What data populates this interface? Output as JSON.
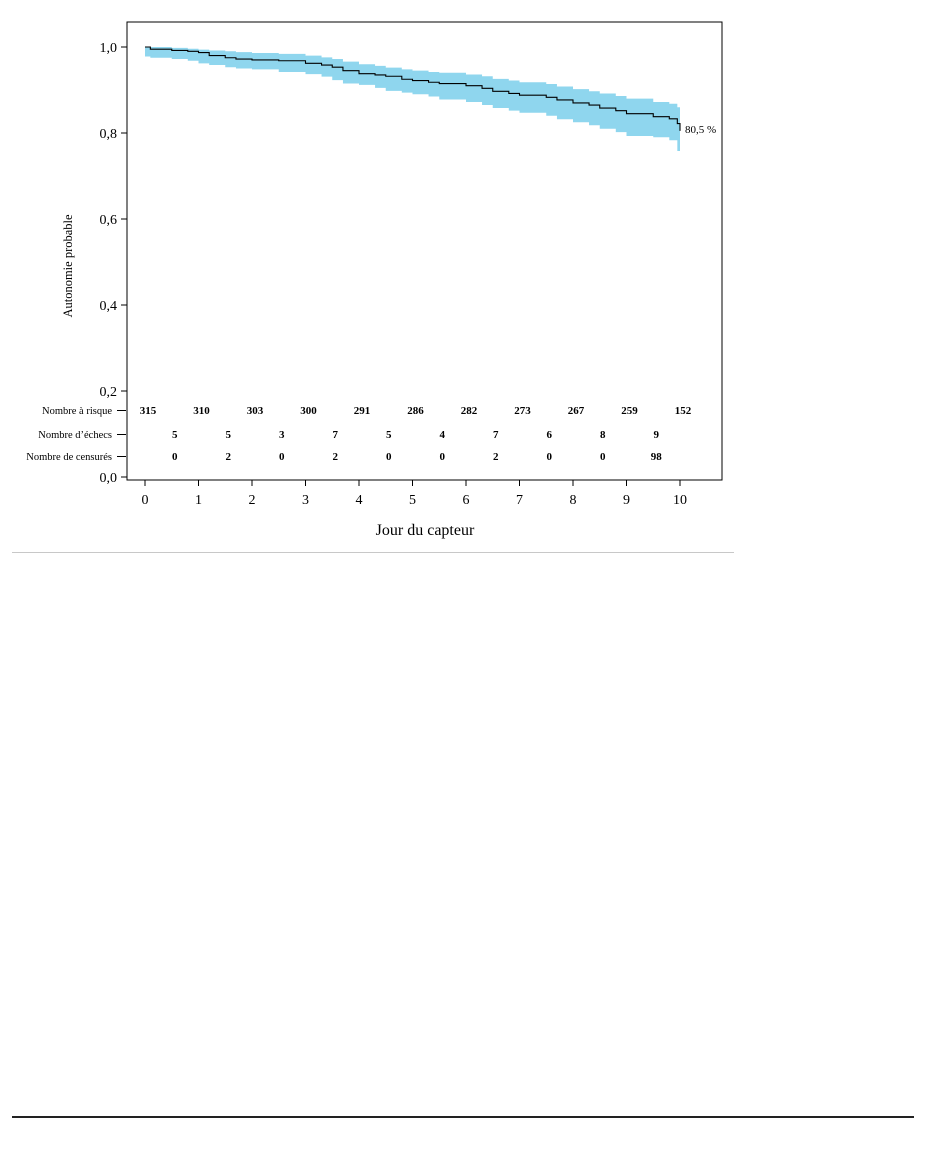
{
  "chart_data": {
    "type": "line",
    "title": "",
    "xlabel": "Jour du capteur",
    "ylabel": "Autonomie probable",
    "xlim": [
      -0.3,
      10.8
    ],
    "ylim": [
      0.0,
      1.05
    ],
    "y_ticks": [
      0.0,
      0.2,
      0.4,
      0.6,
      0.8,
      1.0
    ],
    "y_tick_labels": [
      "0,0",
      "0,2",
      "0,4",
      "0,6",
      "0,8",
      "1,0"
    ],
    "x_ticks": [
      0,
      1,
      2,
      3,
      4,
      5,
      6,
      7,
      8,
      9,
      10
    ],
    "x_tick_labels": [
      "0",
      "1",
      "2",
      "3",
      "4",
      "5",
      "6",
      "7",
      "8",
      "9",
      "10"
    ],
    "grid": false,
    "band_color": "#8fd6ee",
    "line_color": "#000000",
    "end_label": "80,5 %",
    "series": [
      {
        "x": [
          0,
          0.1,
          0.5,
          0.8,
          1.0,
          1.2,
          1.5,
          1.7,
          2.0,
          2.5,
          3.0,
          3.3,
          3.5,
          3.7,
          4.0,
          4.3,
          4.5,
          4.8,
          5.0,
          5.3,
          5.5,
          6.0,
          6.3,
          6.5,
          6.8,
          7.0,
          7.5,
          7.7,
          8.0,
          8.3,
          8.5,
          8.8,
          9.0,
          9.5,
          9.8,
          9.95,
          10.0
        ],
        "y": [
          1.0,
          0.995,
          0.992,
          0.99,
          0.987,
          0.98,
          0.975,
          0.972,
          0.97,
          0.968,
          0.962,
          0.958,
          0.953,
          0.945,
          0.938,
          0.935,
          0.932,
          0.925,
          0.922,
          0.918,
          0.915,
          0.91,
          0.904,
          0.897,
          0.892,
          0.888,
          0.883,
          0.877,
          0.87,
          0.865,
          0.858,
          0.852,
          0.845,
          0.838,
          0.833,
          0.822,
          0.805
        ],
        "lower": [
          0.98,
          0.978,
          0.975,
          0.972,
          0.968,
          0.962,
          0.958,
          0.953,
          0.95,
          0.948,
          0.942,
          0.937,
          0.931,
          0.923,
          0.915,
          0.912,
          0.905,
          0.898,
          0.894,
          0.89,
          0.885,
          0.878,
          0.872,
          0.865,
          0.858,
          0.852,
          0.847,
          0.84,
          0.832,
          0.825,
          0.818,
          0.81,
          0.802,
          0.793,
          0.79,
          0.783,
          0.758
        ],
        "upper": [
          1.0,
          1.0,
          0.998,
          0.996,
          0.994,
          0.992,
          0.99,
          0.988,
          0.986,
          0.984,
          0.98,
          0.976,
          0.972,
          0.966,
          0.96,
          0.956,
          0.952,
          0.948,
          0.945,
          0.942,
          0.94,
          0.936,
          0.932,
          0.926,
          0.922,
          0.918,
          0.914,
          0.908,
          0.902,
          0.897,
          0.892,
          0.886,
          0.88,
          0.872,
          0.868,
          0.86,
          0.848
        ]
      }
    ],
    "risk_table": {
      "rows": [
        {
          "label": "Nombre à risque",
          "values": [
            {
              "x": 0,
              "v": "315"
            },
            {
              "x": 1,
              "v": "310"
            },
            {
              "x": 2,
              "v": "303"
            },
            {
              "x": 3,
              "v": "300"
            },
            {
              "x": 4,
              "v": "291"
            },
            {
              "x": 5,
              "v": "286"
            },
            {
              "x": 6,
              "v": "282"
            },
            {
              "x": 7,
              "v": "273"
            },
            {
              "x": 8,
              "v": "267"
            },
            {
              "x": 9,
              "v": "259"
            },
            {
              "x": 10,
              "v": "152"
            }
          ]
        },
        {
          "label": "Nombre d’échecs",
          "values": [
            {
              "x": 0.5,
              "v": "5"
            },
            {
              "x": 1.5,
              "v": "5"
            },
            {
              "x": 2.5,
              "v": "3"
            },
            {
              "x": 3.5,
              "v": "7"
            },
            {
              "x": 4.5,
              "v": "5"
            },
            {
              "x": 5.5,
              "v": "4"
            },
            {
              "x": 6.5,
              "v": "7"
            },
            {
              "x": 7.5,
              "v": "6"
            },
            {
              "x": 8.5,
              "v": "8"
            },
            {
              "x": 9.5,
              "v": "9"
            }
          ]
        },
        {
          "label": "Nombre de censurés",
          "values": [
            {
              "x": 0.5,
              "v": "0"
            },
            {
              "x": 1.5,
              "v": "2"
            },
            {
              "x": 2.5,
              "v": "0"
            },
            {
              "x": 3.5,
              "v": "2"
            },
            {
              "x": 4.5,
              "v": "0"
            },
            {
              "x": 5.5,
              "v": "0"
            },
            {
              "x": 6.5,
              "v": "2"
            },
            {
              "x": 7.5,
              "v": "0"
            },
            {
              "x": 8.5,
              "v": "0"
            },
            {
              "x": 9.5,
              "v": "98"
            }
          ]
        }
      ]
    }
  }
}
